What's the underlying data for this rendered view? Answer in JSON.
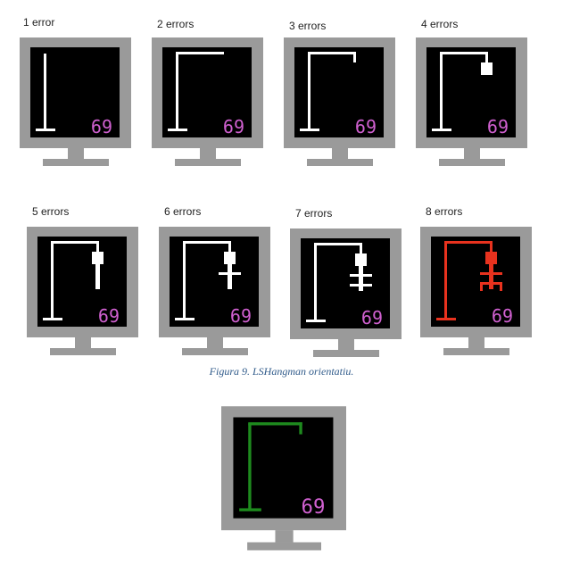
{
  "panels": [
    {
      "label": "1 error",
      "counter": "69",
      "stage": 1
    },
    {
      "label": "2 errors",
      "counter": "69",
      "stage": 2
    },
    {
      "label": "3 errors",
      "counter": "69",
      "stage": 3
    },
    {
      "label": "4 errors",
      "counter": "69",
      "stage": 4
    },
    {
      "label": "5 errors",
      "counter": "69",
      "stage": 5
    },
    {
      "label": "6 errors",
      "counter": "69",
      "stage": 6
    },
    {
      "label": "7 errors",
      "counter": "69",
      "stage": 7
    },
    {
      "label": "8 errors",
      "counter": "69",
      "stage": 8
    }
  ],
  "win_panel": {
    "counter": "69"
  },
  "caption": "Figura 9. LSHangman orientatiu.",
  "colors": {
    "frame": "#9a9a9a",
    "screen": "#000000",
    "drawing": "#ffffff",
    "lose": "#e8321e",
    "win": "#1e8a1e",
    "counter": "#d060d0"
  }
}
